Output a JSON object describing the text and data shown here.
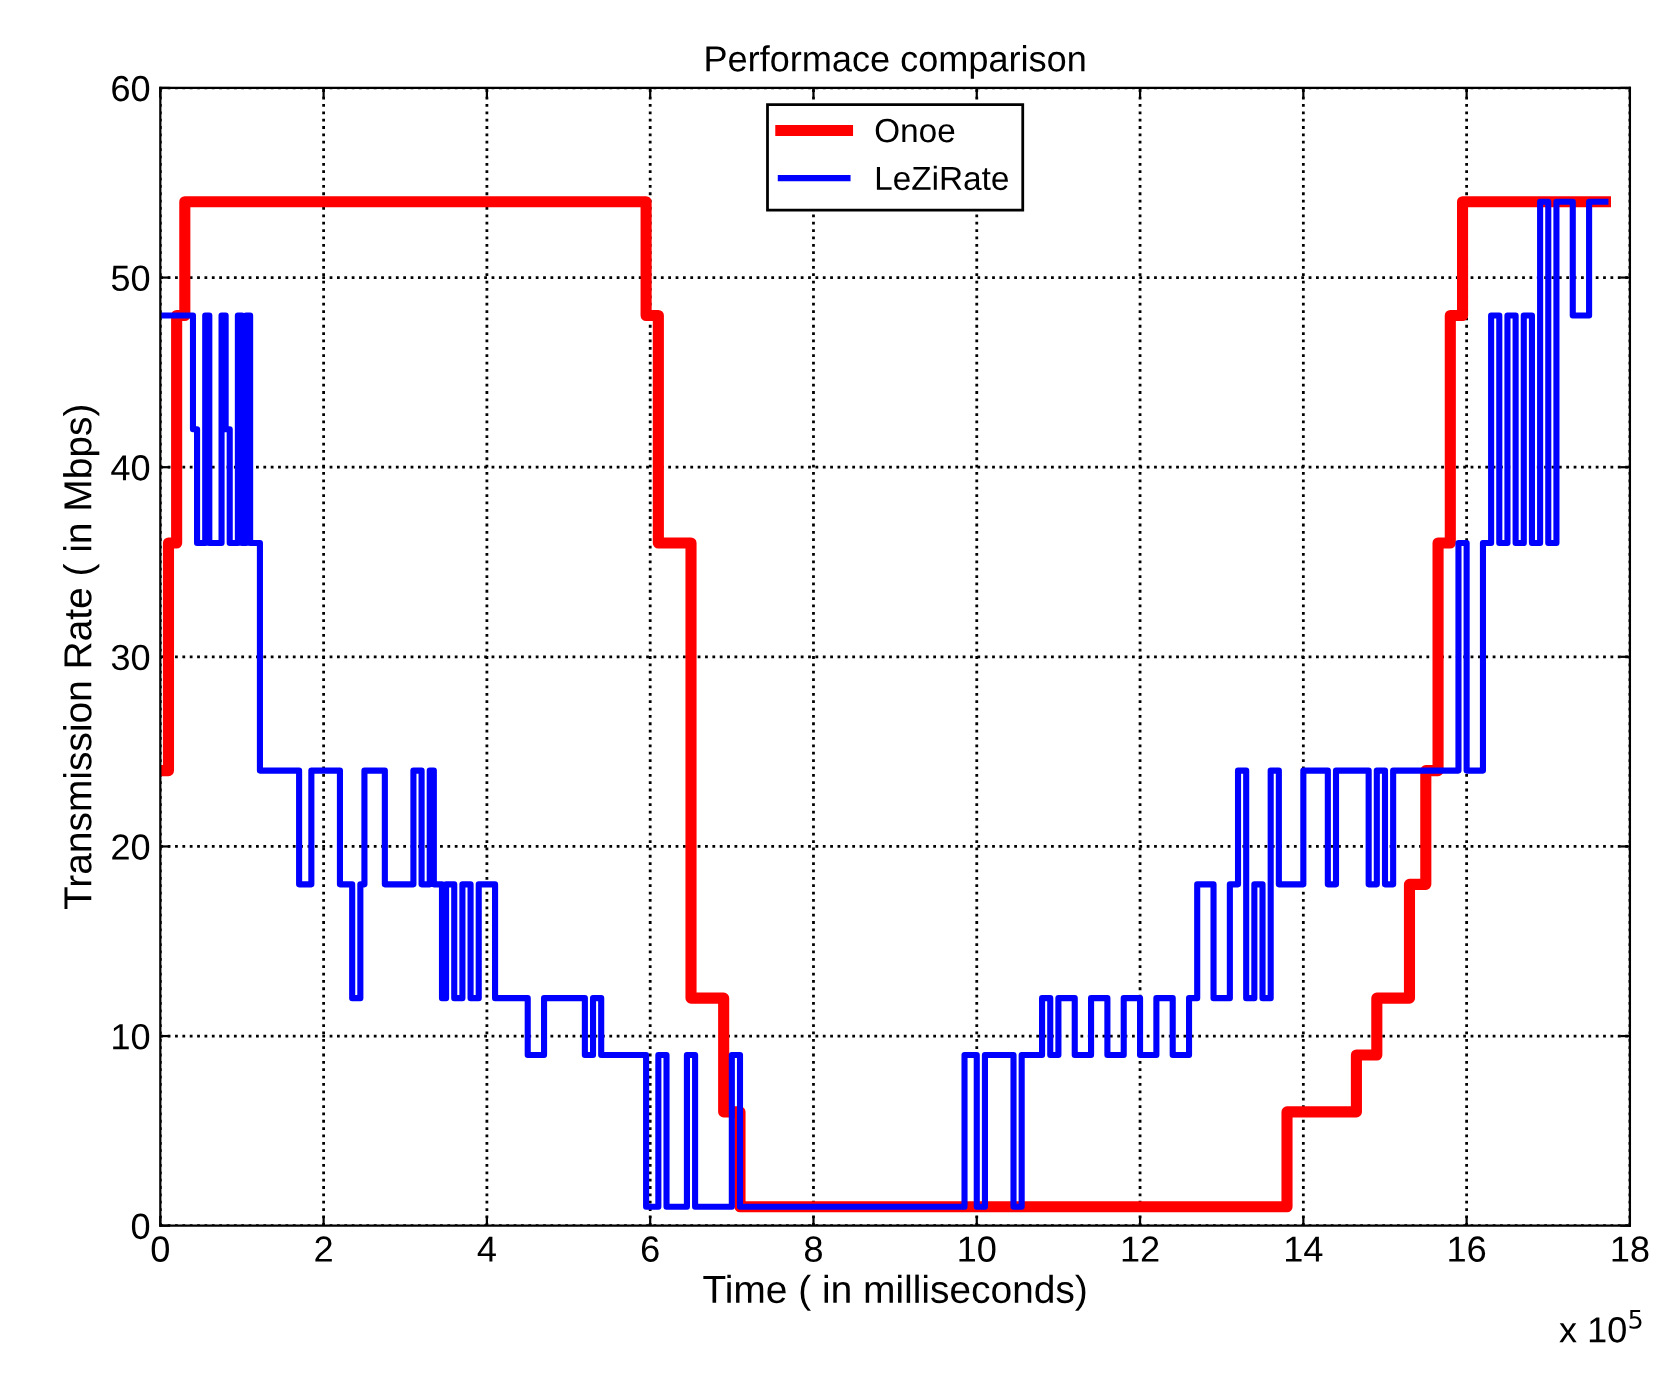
{
  "chart_data": {
    "type": "step",
    "title": "Performace comparison",
    "xlabel": "Time ( in milliseconds)",
    "ylabel": "Transmission Rate ( in Mbps)",
    "annotations": [
      "x 10$^{5}$"
    ],
    "xlim": [
      0,
      18
    ],
    "ylim": [
      0,
      60
    ],
    "xticks": [
      0,
      2,
      4,
      6,
      8,
      10,
      12,
      14,
      16,
      18
    ],
    "yticks": [
      0,
      10,
      20,
      30,
      40,
      50,
      60
    ],
    "grid": true,
    "legend": "top",
    "line_style": "solid",
    "series": [
      {
        "name": "Onoe",
        "color": "#ff0000",
        "x": [
          0,
          0.1,
          0.2,
          0.3,
          5.95,
          6.1,
          6.5,
          6.9,
          7.1,
          13.8,
          14.65,
          14.9,
          15.3,
          15.5,
          15.65,
          15.8,
          15.95,
          17.7
        ],
        "values": [
          24,
          36,
          48,
          54,
          48,
          36,
          12,
          6,
          1,
          6,
          9,
          12,
          18,
          24,
          36,
          48,
          54,
          54
        ]
      },
      {
        "name": "LeZiRate",
        "color": "#0000ff",
        "x": [
          0,
          0.4,
          0.45,
          0.55,
          0.6,
          0.75,
          0.8,
          0.85,
          0.95,
          1.0,
          1.05,
          1.1,
          1.15,
          1.22,
          1.7,
          1.85,
          2.2,
          2.35,
          2.45,
          2.5,
          2.75,
          3.1,
          3.2,
          3.3,
          3.35,
          3.45,
          3.5,
          3.6,
          3.7,
          3.8,
          3.9,
          4.1,
          4.5,
          4.7,
          4.75,
          5.2,
          5.3,
          5.4,
          5.5,
          5.95,
          6.1,
          6.2,
          6.45,
          6.55,
          7.0,
          7.1,
          7.15,
          9.85,
          10.0,
          10.1,
          10.45,
          10.55,
          10.8,
          10.9,
          11.0,
          11.2,
          11.4,
          11.6,
          11.8,
          12.0,
          12.2,
          12.4,
          12.6,
          12.7,
          12.9,
          13.1,
          13.2,
          13.3,
          13.4,
          13.5,
          13.6,
          13.7,
          13.8,
          14.0,
          14.3,
          14.4,
          14.8,
          14.9,
          15.0,
          15.1,
          15.8,
          15.9,
          16.0,
          16.2,
          16.3,
          16.4,
          16.5,
          16.6,
          16.7,
          16.8,
          16.9,
          17.0,
          17.1,
          17.3,
          17.5,
          17.7
        ],
        "values": [
          48,
          42,
          36,
          48,
          36,
          48,
          42,
          36,
          48,
          36,
          48,
          36,
          36,
          24,
          18,
          24,
          18,
          12,
          18,
          24,
          18,
          24,
          18,
          24,
          18,
          12,
          18,
          12,
          18,
          12,
          18,
          12,
          9,
          12,
          12,
          9,
          12,
          9,
          9,
          1,
          9,
          1,
          9,
          1,
          9,
          1,
          1,
          9,
          1,
          9,
          1,
          9,
          12,
          9,
          12,
          9,
          12,
          9,
          12,
          9,
          12,
          9,
          12,
          18,
          12,
          18,
          24,
          12,
          18,
          12,
          24,
          18,
          18,
          24,
          18,
          24,
          18,
          24,
          18,
          24,
          24,
          36,
          24,
          36,
          48,
          36,
          48,
          36,
          48,
          36,
          54,
          36,
          54,
          48,
          54,
          54
        ]
      }
    ]
  }
}
